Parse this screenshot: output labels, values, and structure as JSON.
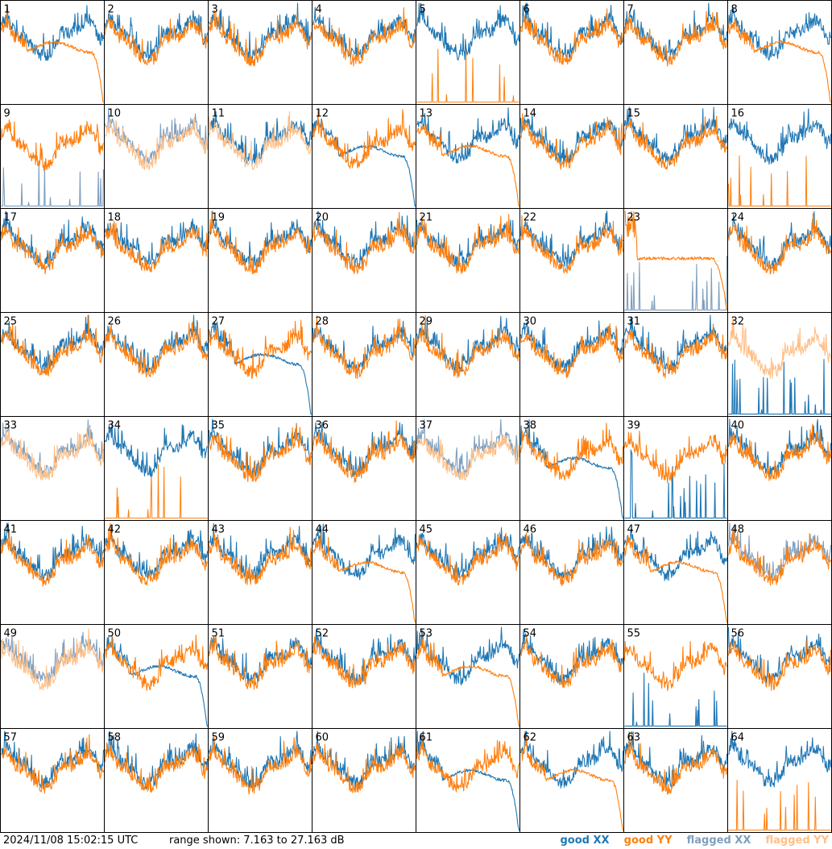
{
  "chart_data": {
    "type": "line",
    "layout": "small-multiples",
    "grid_rows": 8,
    "grid_cols": 8,
    "panel_labels": [
      "1",
      "2",
      "3",
      "4",
      "5",
      "6",
      "7",
      "8",
      "9",
      "10",
      "11",
      "12",
      "13",
      "14",
      "15",
      "16",
      "17",
      "18",
      "19",
      "20",
      "21",
      "22",
      "23",
      "24",
      "25",
      "26",
      "27",
      "28",
      "29",
      "30",
      "31",
      "32",
      "33",
      "34",
      "35",
      "36",
      "37",
      "38",
      "39",
      "40",
      "41",
      "42",
      "43",
      "44",
      "45",
      "46",
      "47",
      "48",
      "49",
      "50",
      "51",
      "52",
      "53",
      "54",
      "55",
      "56",
      "57",
      "58",
      "59",
      "60",
      "61",
      "62",
      "63",
      "64"
    ],
    "ylim_db": [
      7.163,
      27.163
    ],
    "series_styles": {
      "good_xx": "#1f77b4",
      "good_yy": "#ff7f0e",
      "flagged_xx": "#7f9fbf",
      "flagged_yy": "#ffbf87"
    },
    "panels": {
      "1": {
        "xx": "good",
        "yy": "good",
        "yy_shape": "decay_end"
      },
      "5": {
        "xx": "good",
        "yy": "spikes"
      },
      "8": {
        "xx": "good",
        "yy": "good",
        "yy_shape": "decay_end"
      },
      "9": {
        "xx": "flagged_spikes",
        "yy": "good"
      },
      "10": {
        "xx": "flagged",
        "yy": "flagged"
      },
      "11": {
        "xx": "good",
        "yy": "flagged"
      },
      "12": {
        "xx": "good",
        "yy": "good",
        "xx_shape": "decay_end"
      },
      "13": {
        "xx": "good",
        "yy": "good",
        "yy_shape": "decay_end"
      },
      "16": {
        "xx": "good",
        "yy": "spikes"
      },
      "23": {
        "xx": "flagged_spikes",
        "yy": "good",
        "yy_shape": "flat_decay"
      },
      "27": {
        "xx": "good",
        "yy": "good",
        "xx_shape": "decay_end"
      },
      "32": {
        "xx": "spikes",
        "yy": "flagged"
      },
      "33": {
        "xx": "flagged",
        "yy": "flagged"
      },
      "34": {
        "xx": "good",
        "yy": "spikes"
      },
      "37": {
        "xx": "flagged",
        "yy": "flagged"
      },
      "38": {
        "xx": "good",
        "yy": "good",
        "xx_shape": "decay_end"
      },
      "39": {
        "xx": "drop",
        "yy": "good"
      },
      "44": {
        "xx": "good",
        "yy": "good",
        "yy_shape": "decay_end"
      },
      "47": {
        "xx": "good",
        "yy": "good",
        "yy_shape": "decay_end"
      },
      "48": {
        "xx": "flagged",
        "yy": "good"
      },
      "49": {
        "xx": "flagged",
        "yy": "flagged"
      },
      "50": {
        "xx": "good",
        "yy": "good",
        "xx_shape": "decay_end"
      },
      "53": {
        "xx": "good",
        "yy": "good",
        "yy_shape": "decay_end"
      },
      "55": {
        "xx": "spikes",
        "yy": "good"
      },
      "61": {
        "xx": "good",
        "yy": "good",
        "xx_shape": "decay_end"
      },
      "62": {
        "xx": "good",
        "yy": "good",
        "yy_shape": "decay_end"
      },
      "64": {
        "xx": "good",
        "yy": "spikes"
      }
    }
  },
  "footer": {
    "timestamp": "2024/11/08 15:02:15 UTC",
    "range_text": "range shown: 7.163 to 27.163 dB",
    "legend": [
      {
        "label": "good XX",
        "color": "#1f77b4"
      },
      {
        "label": "good YY",
        "color": "#ff7f0e"
      },
      {
        "label": "flagged XX",
        "color": "#7f9fbf"
      },
      {
        "label": "flagged YY",
        "color": "#ffbf87"
      }
    ]
  }
}
